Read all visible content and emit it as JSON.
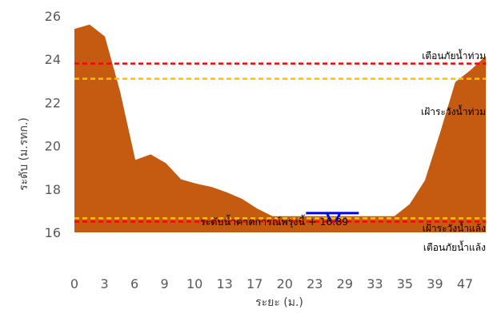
{
  "chart_data": {
    "type": "area",
    "xlabel": "ระยะ (ม.)",
    "ylabel": "ระดับ (ม.รทก.)",
    "ylim": [
      16,
      26
    ],
    "y_ticks": [
      16,
      18,
      20,
      22,
      24,
      26
    ],
    "x_tick_labels": [
      "0",
      "3",
      "6",
      "9",
      "10",
      "13",
      "17",
      "20",
      "23",
      "29",
      "33",
      "35",
      "39",
      "47"
    ],
    "grid": false,
    "legend": "none",
    "colors": {
      "terrain": "#C55A11",
      "water": "#0000FF",
      "flood_warning": "#FF0000",
      "flood_watch": "#FFC000",
      "drought_watch": "#FFC000",
      "drought_warning": "#FF0000"
    },
    "terrain": {
      "x": [
        0,
        1.5,
        3,
        4.5,
        6,
        7.5,
        9,
        10.5,
        12,
        13.5,
        15,
        16.5,
        18,
        19.5,
        21,
        22.5,
        24,
        25.5,
        27,
        28.5,
        30,
        31.5,
        33,
        34.5,
        36,
        37.5,
        39,
        40.5
      ],
      "y": [
        25.4,
        25.6,
        25.05,
        22.5,
        19.35,
        19.6,
        19.2,
        18.45,
        18.25,
        18.1,
        17.85,
        17.55,
        17.1,
        16.75,
        16.75,
        16.75,
        16.75,
        16.75,
        16.75,
        16.75,
        16.75,
        16.75,
        17.3,
        18.4,
        20.6,
        22.95,
        23.5,
        24.15
      ]
    },
    "water_surface": {
      "x_start": 22.8,
      "x_end": 28.0,
      "y": 16.89,
      "dip_x": 25.5,
      "dip_y": 16.3
    },
    "levels": [
      {
        "key": "flood_warning",
        "label": "เตือนภัยน้ำท่วม",
        "value": 23.8,
        "style": "dashed",
        "color": "#FF0000"
      },
      {
        "key": "flood_watch",
        "label": "เฝ้าระวังน้ำท่วม",
        "value": 23.1,
        "style": "dashed",
        "color": "#FFC000"
      },
      {
        "key": "drought_watch",
        "label": "เฝ้าระวังน้ำแล้ง",
        "value": 16.65,
        "style": "dashed",
        "color": "#FFC000"
      },
      {
        "key": "drought_warning",
        "label": "เตือนภัยน้ำแล้ง",
        "value": 16.5,
        "style": "dashed",
        "color": "#FF0000"
      }
    ],
    "annotations": {
      "forecast": "ระดับน้ำคาดการณ์พรุ่งนี้ + 16.89"
    }
  }
}
